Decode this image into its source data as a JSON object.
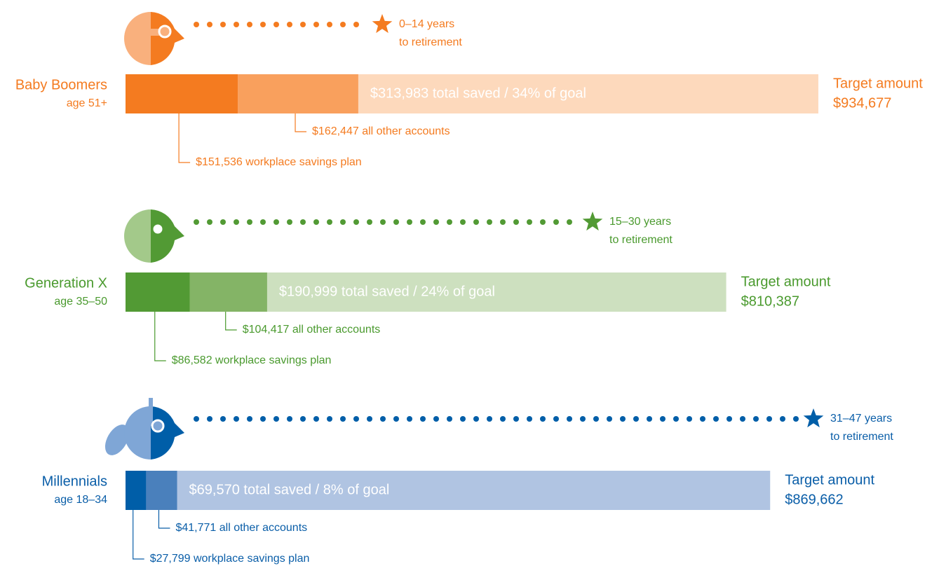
{
  "chart_data": {
    "type": "stacked-bar-horizontal",
    "categories": [
      "Baby Boomers",
      "Generation X",
      "Millennials"
    ],
    "age_labels": [
      "age 51+",
      "age 35–50",
      "age 18–34"
    ],
    "retirement_labels": [
      [
        "0–14 years",
        "to retirement"
      ],
      [
        "15–30 years",
        "to retirement"
      ],
      [
        "31–47 years",
        "to retirement"
      ]
    ],
    "series": [
      {
        "colors": [
          "#f47b20",
          "#529a34",
          "#005ea8"
        ],
        "values": [
          151536,
          86582,
          27799
        ],
        "value_labels": [
          "$151,536 workplace savings plan",
          "$86,582 workplace savings plan",
          "$27,799 workplace savings plan"
        ]
      },
      {
        "colors": [
          "#f9a05d",
          "#84b466",
          "#4a80bc"
        ],
        "values": [
          162447,
          104417,
          41771
        ],
        "value_labels": [
          "$162,447 all other accounts",
          "$104,417 all other accounts",
          "$41,771 all other accounts"
        ]
      }
    ],
    "totals": {
      "values": [
        313983,
        190999,
        69570
      ],
      "value_labels": [
        "$313,983 total saved / 34% of goal",
        "$190,999 total saved / 24% of goal",
        "$69,570 total saved / 8% of goal"
      ]
    },
    "targets": {
      "title": "Target amount",
      "colors": [
        "#fdd9bc",
        "#cde0bf",
        "#b0c4e2"
      ],
      "values": [
        934677,
        810387,
        869662
      ],
      "value_labels": [
        "$934,677",
        "$810,387",
        "$869,662"
      ]
    },
    "text_colors": [
      "#f47b20",
      "#4a9a2e",
      "#0a5ea8"
    ],
    "light_colors": [
      "#f9b07d",
      "#a3c98a",
      "#7fa6d6"
    ]
  }
}
